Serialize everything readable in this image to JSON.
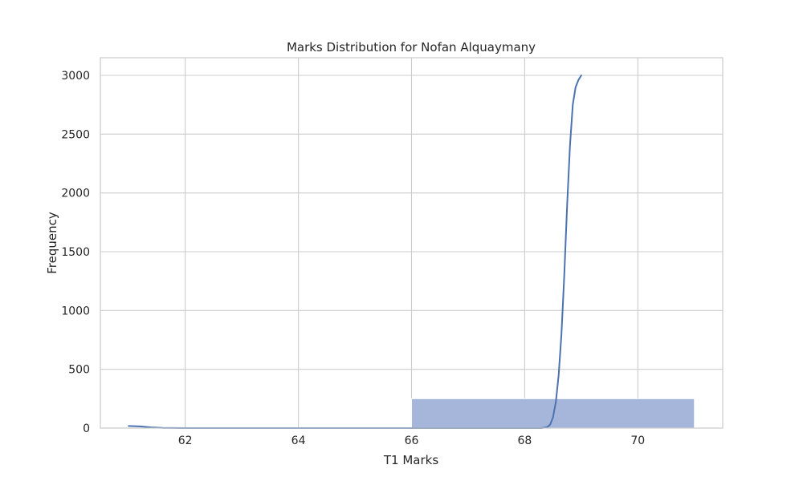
{
  "chart_data": {
    "type": "bar",
    "title": "Marks Distribution for Nofan Alquaymany",
    "xlabel": "T1 Marks",
    "ylabel": "Frequency",
    "xlim": [
      60.5,
      71.5
    ],
    "ylim": [
      0,
      3150
    ],
    "x_ticks": [
      62,
      64,
      66,
      68,
      70
    ],
    "y_ticks": [
      0,
      500,
      1000,
      1500,
      2000,
      2500,
      3000
    ],
    "grid": true,
    "bins": [
      {
        "x0": 61,
        "x1": 66,
        "value": 0
      },
      {
        "x0": 66,
        "x1": 71,
        "value": 250
      }
    ],
    "kde_line": {
      "x": [
        61.0,
        61.2,
        61.4,
        61.6,
        62.0,
        63.0,
        64.0,
        65.0,
        66.0,
        67.0,
        68.0,
        68.3,
        68.4,
        68.45,
        68.5,
        68.55,
        68.6,
        68.65,
        68.7,
        68.75,
        68.8,
        68.85,
        68.9,
        68.95,
        69.0
      ],
      "y": [
        18,
        14,
        6,
        2,
        0,
        0,
        0,
        0,
        0,
        0,
        0,
        0,
        8,
        30,
        90,
        220,
        450,
        800,
        1300,
        1900,
        2400,
        2750,
        2900,
        2960,
        3000
      ]
    },
    "colors": {
      "bar_fill": "#a5b6da",
      "bar_edge": "#ffffff",
      "kde_line": "#4c72b0",
      "frame": "#cccccc"
    }
  }
}
